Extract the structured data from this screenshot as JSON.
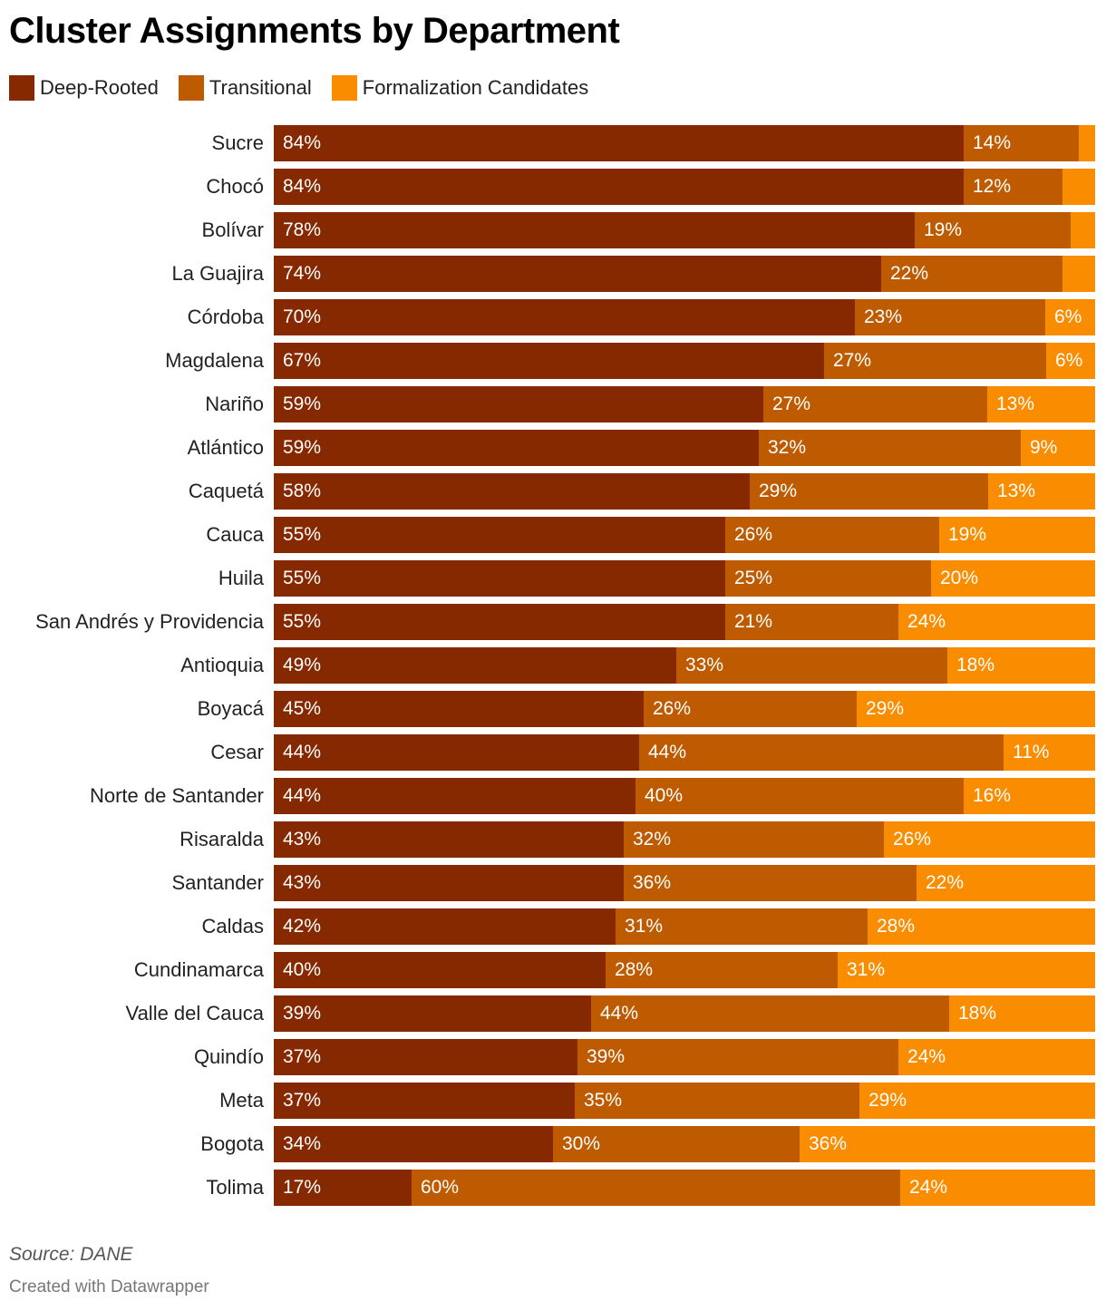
{
  "title": "Cluster Assignments by Department",
  "source": "Source: DANE",
  "credit": "Created with Datawrapper",
  "colors": {
    "deep": "#862800",
    "transitional": "#be5b00",
    "formalization": "#fa8c00"
  },
  "chart_data": {
    "type": "bar",
    "orientation": "horizontal",
    "stacked": true,
    "title": "Cluster Assignments by Department",
    "xlabel": "",
    "ylabel": "",
    "xlim": [
      0,
      100
    ],
    "categories": [
      "Sucre",
      "Chocó",
      "Bolívar",
      "La Guajira",
      "Córdoba",
      "Magdalena",
      "Nariño",
      "Atlántico",
      "Caquetá",
      "Cauca",
      "Huila",
      "San Andrés y Providencia",
      "Antioquia",
      "Boyacá",
      "Cesar",
      "Norte de Santander",
      "Risaralda",
      "Santander",
      "Caldas",
      "Cundinamarca",
      "Valle del Cauca",
      "Quindío",
      "Meta",
      "Bogota",
      "Tolima"
    ],
    "series": [
      {
        "name": "Deep-Rooted",
        "color": "#862800",
        "values": [
          84,
          84,
          78,
          74,
          70,
          67,
          59,
          59,
          58,
          55,
          55,
          55,
          49,
          45,
          44,
          44,
          43,
          43,
          42,
          40,
          39,
          37,
          37,
          34,
          17
        ]
      },
      {
        "name": "Transitional",
        "color": "#be5b00",
        "values": [
          14,
          12,
          19,
          22,
          23,
          27,
          27,
          32,
          29,
          26,
          25,
          21,
          33,
          26,
          44,
          40,
          32,
          36,
          31,
          28,
          44,
          39,
          35,
          30,
          60
        ]
      },
      {
        "name": "Formalization Candidates",
        "color": "#fa8c00",
        "values": [
          2,
          4,
          3,
          4,
          6,
          6,
          13,
          9,
          13,
          19,
          20,
          24,
          18,
          29,
          11,
          16,
          26,
          22,
          28,
          31,
          18,
          24,
          29,
          36,
          24
        ]
      }
    ],
    "legend": "top-left",
    "label_min_value": 5
  }
}
